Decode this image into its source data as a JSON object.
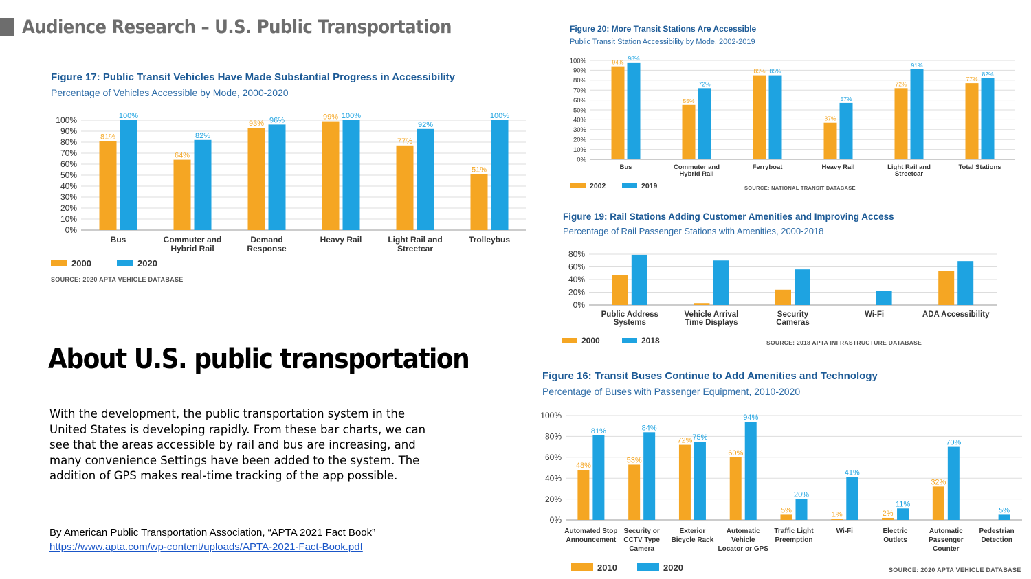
{
  "page": {
    "title": "Audience Research – U.S. Public Transportation",
    "about_title": "About U.S. public transportation",
    "about_body": "With the development, the public transportation system in the United States is developing rapidly. From these bar charts, we can see that the areas accessible by rail and bus are increasing, and many convenience Settings have been added to the system. The addition of GPS makes real-time tracking of the app possible.",
    "credit": "By American Public Transportation Association,  “APTA 2021 Fact Book”",
    "credit_link": "https://www.apta.com/wp-content/uploads/APTA-2021-Fact-Book.pdf"
  },
  "colors": {
    "series_a": "#f5a623",
    "series_b": "#1ea3e1",
    "grid": "#dddddd",
    "title": "#1c5a96"
  },
  "chart_data": [
    {
      "id": "fig17",
      "type": "bar",
      "title": "Figure 17:  Public Transit Vehicles Have Made Substantial Progress in Accessibility",
      "subtitle": "Percentage of Vehicles Accessible by Mode, 2000-2020",
      "categories": [
        [
          "Bus"
        ],
        [
          "Commuter and",
          "Hybrid Rail"
        ],
        [
          "Demand",
          "Response"
        ],
        [
          "Heavy Rail"
        ],
        [
          "Light Rail and",
          "Streetcar"
        ],
        [
          "Trolleybus"
        ]
      ],
      "series": [
        {
          "name": "2000",
          "values": [
            81,
            64,
            93,
            99,
            77,
            51
          ]
        },
        {
          "name": "2020",
          "values": [
            100,
            82,
            96,
            100,
            92,
            100
          ]
        }
      ],
      "data_labels": true,
      "yticks": [
        0,
        10,
        20,
        30,
        40,
        50,
        60,
        70,
        80,
        90,
        100
      ],
      "ylim": [
        0,
        100
      ],
      "legend": "bottom-left",
      "source": "SOURCE: 2020 APTA VEHICLE DATABASE"
    },
    {
      "id": "fig20",
      "type": "bar",
      "title": "Figure 20:  More Transit Stations Are Accessible",
      "subtitle": "Public Transit Station Accessibility by Mode, 2002-2019",
      "categories": [
        [
          "Bus"
        ],
        [
          "Commuter and",
          "Hybrid Rail"
        ],
        [
          "Ferryboat"
        ],
        [
          "Heavy Rail"
        ],
        [
          "Light Rail and",
          "Streetcar"
        ],
        [
          "Total Stations"
        ]
      ],
      "series": [
        {
          "name": "2002",
          "values": [
            94,
            55,
            85,
            37,
            72,
            77
          ]
        },
        {
          "name": "2019",
          "values": [
            98,
            72,
            85,
            57,
            91,
            82
          ]
        }
      ],
      "data_labels": true,
      "yticks": [
        0,
        10,
        20,
        30,
        40,
        50,
        60,
        70,
        80,
        90,
        100
      ],
      "ylim": [
        0,
        100
      ],
      "legend": "bottom-left",
      "source": "SOURCE: NATIONAL TRANSIT DATABASE"
    },
    {
      "id": "fig19",
      "type": "bar",
      "title": "Figure 19:  Rail Stations Adding Customer Amenities and Improving Access",
      "subtitle": "Percentage of Rail Passenger Stations with Amenities, 2000-2018",
      "categories": [
        [
          "Public Address",
          "Systems"
        ],
        [
          "Vehicle Arrival",
          "Time Displays"
        ],
        [
          "Security",
          "Cameras"
        ],
        [
          "Wi-Fi"
        ],
        [
          "ADA Accessibility"
        ]
      ],
      "series": [
        {
          "name": "2000",
          "values": [
            47,
            3,
            24,
            0,
            53
          ]
        },
        {
          "name": "2018",
          "values": [
            79,
            70,
            56,
            22,
            69
          ]
        }
      ],
      "data_labels": false,
      "yticks": [
        0,
        20,
        40,
        60,
        80
      ],
      "ylim": [
        0,
        80
      ],
      "legend": "bottom-left",
      "source": "SOURCE: 2018 APTA INFRASTRUCTURE DATABASE"
    },
    {
      "id": "fig16",
      "type": "bar",
      "title": "Figure 16:  Transit Buses Continue to Add Amenities and Technology",
      "subtitle": "Percentage of Buses with Passenger Equipment, 2010-2020",
      "categories": [
        [
          "Automated Stop",
          "Announcement"
        ],
        [
          "Security or",
          "CCTV Type",
          "Camera"
        ],
        [
          "Exterior",
          "Bicycle Rack"
        ],
        [
          "Automatic",
          "Vehicle",
          "Locator or GPS"
        ],
        [
          "Traffic Light",
          "Preemption"
        ],
        [
          "Wi-Fi"
        ],
        [
          "Electric",
          "Outlets"
        ],
        [
          "Automatic",
          "Passenger",
          "Counter"
        ],
        [
          "Pedestrian",
          "Detection"
        ]
      ],
      "series": [
        {
          "name": "2010",
          "values": [
            48,
            53,
            72,
            60,
            5,
            1,
            2,
            32,
            0
          ]
        },
        {
          "name": "2020",
          "values": [
            81,
            84,
            75,
            94,
            20,
            41,
            11,
            70,
            5
          ]
        }
      ],
      "data_labels": true,
      "hide_zero_labels": true,
      "yticks": [
        0,
        20,
        40,
        60,
        80,
        100
      ],
      "ylim": [
        0,
        100
      ],
      "legend": "bottom-left",
      "source": "SOURCE: 2020 APTA VEHICLE DATABASE"
    }
  ]
}
